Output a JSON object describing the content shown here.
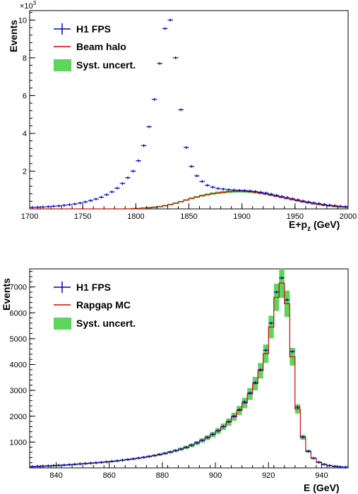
{
  "chart_data": [
    {
      "type": "line",
      "xlabel": "E+p",
      "xlabel_sub": "z",
      "xlabel_unit": " (GeV)",
      "ylabel": "Events",
      "y_multiplier": "×10",
      "y_multiplier_exp": "3",
      "xlim": [
        1700,
        2000
      ],
      "ylim": [
        0,
        10.5
      ],
      "xticks": [
        "1700",
        "1750",
        "1800",
        "1850",
        "1900",
        "1950",
        "2000"
      ],
      "yticks": [
        "2",
        "4",
        "6",
        "8",
        "10"
      ],
      "legend": [
        "H1 FPS",
        "Beam halo",
        "Syst. uncert."
      ],
      "legend_placement": "top-left",
      "colors": {
        "data": "#0000cc",
        "model": "#dd0000",
        "band": "#5dd65d"
      },
      "bin_width": 5,
      "series": [
        {
          "name": "H1 FPS",
          "x": [
            1702.5,
            1707.5,
            1712.5,
            1717.5,
            1722.5,
            1727.5,
            1732.5,
            1737.5,
            1742.5,
            1747.5,
            1752.5,
            1757.5,
            1762.5,
            1767.5,
            1772.5,
            1777.5,
            1782.5,
            1787.5,
            1792.5,
            1797.5,
            1802.5,
            1807.5,
            1812.5,
            1817.5,
            1822.5,
            1827.5,
            1832.5,
            1837.5,
            1842.5,
            1847.5,
            1852.5,
            1857.5,
            1862.5,
            1867.5,
            1872.5,
            1877.5,
            1882.5,
            1887.5,
            1892.5,
            1897.5,
            1902.5,
            1907.5,
            1912.5,
            1917.5,
            1922.5,
            1927.5,
            1932.5,
            1937.5,
            1942.5,
            1947.5,
            1952.5,
            1957.5,
            1962.5,
            1967.5,
            1972.5,
            1977.5,
            1982.5,
            1987.5,
            1992.5,
            1997.5
          ],
          "values": [
            0.08,
            0.09,
            0.1,
            0.12,
            0.14,
            0.16,
            0.19,
            0.22,
            0.26,
            0.31,
            0.37,
            0.44,
            0.52,
            0.62,
            0.75,
            0.9,
            1.1,
            1.35,
            1.65,
            2.0,
            2.55,
            3.35,
            4.35,
            5.8,
            7.7,
            9.55,
            10.0,
            8.0,
            5.25,
            3.25,
            2.25,
            1.75,
            1.45,
            1.25,
            1.15,
            1.08,
            1.05,
            1.02,
            1.0,
            0.98,
            0.97,
            0.95,
            0.92,
            0.88,
            0.84,
            0.78,
            0.72,
            0.66,
            0.6,
            0.54,
            0.48,
            0.42,
            0.37,
            0.32,
            0.28,
            0.24,
            0.2,
            0.17,
            0.14,
            0.12
          ]
        },
        {
          "name": "Beam halo",
          "x": [
            1702.5,
            1707.5,
            1712.5,
            1717.5,
            1722.5,
            1727.5,
            1732.5,
            1737.5,
            1742.5,
            1747.5,
            1752.5,
            1757.5,
            1762.5,
            1767.5,
            1772.5,
            1777.5,
            1782.5,
            1787.5,
            1792.5,
            1797.5,
            1802.5,
            1807.5,
            1812.5,
            1817.5,
            1822.5,
            1827.5,
            1832.5,
            1837.5,
            1842.5,
            1847.5,
            1852.5,
            1857.5,
            1862.5,
            1867.5,
            1872.5,
            1877.5,
            1882.5,
            1887.5,
            1892.5,
            1897.5,
            1902.5,
            1907.5,
            1912.5,
            1917.5,
            1922.5,
            1927.5,
            1932.5,
            1937.5,
            1942.5,
            1947.5,
            1952.5,
            1957.5,
            1962.5,
            1967.5,
            1972.5,
            1977.5,
            1982.5,
            1987.5,
            1992.5,
            1997.5
          ],
          "values": [
            0,
            0,
            0,
            0,
            0,
            0,
            0,
            0,
            0,
            0,
            0,
            0,
            0,
            0,
            0,
            0,
            0,
            0,
            0,
            0.01,
            0.02,
            0.04,
            0.06,
            0.09,
            0.12,
            0.17,
            0.23,
            0.3,
            0.38,
            0.47,
            0.56,
            0.63,
            0.7,
            0.76,
            0.81,
            0.85,
            0.88,
            0.91,
            0.93,
            0.94,
            0.93,
            0.91,
            0.88,
            0.84,
            0.79,
            0.73,
            0.67,
            0.61,
            0.55,
            0.49,
            0.43,
            0.37,
            0.32,
            0.27,
            0.23,
            0.19,
            0.16,
            0.13,
            0.11,
            0.09
          ]
        }
      ]
    },
    {
      "type": "line",
      "xlabel": "E (GeV)",
      "ylabel": "Events",
      "xlim": [
        830,
        950
      ],
      "ylim": [
        0,
        7700
      ],
      "xticks": [
        "840",
        "860",
        "880",
        "900",
        "920",
        "940"
      ],
      "yticks": [
        "1000",
        "2000",
        "3000",
        "4000",
        "5000",
        "6000",
        "7000"
      ],
      "legend": [
        "H1 FPS",
        "Rapgap MC",
        "Syst. uncert."
      ],
      "legend_placement": "top-left",
      "colors": {
        "data": "#0000cc",
        "model": "#dd0000",
        "band": "#5dd65d"
      },
      "bin_width": 2,
      "series": [
        {
          "name": "H1 FPS",
          "x": [
            831,
            833,
            835,
            837,
            839,
            841,
            843,
            845,
            847,
            849,
            851,
            853,
            855,
            857,
            859,
            861,
            863,
            865,
            867,
            869,
            871,
            873,
            875,
            877,
            879,
            881,
            883,
            885,
            887,
            889,
            891,
            893,
            895,
            897,
            899,
            901,
            903,
            905,
            907,
            909,
            911,
            913,
            915,
            917,
            919,
            921,
            923,
            925,
            927,
            929,
            931,
            933,
            935,
            937,
            939,
            941,
            943,
            945,
            947,
            949
          ],
          "values": [
            50,
            60,
            70,
            80,
            90,
            100,
            110,
            125,
            140,
            155,
            170,
            185,
            200,
            215,
            235,
            255,
            275,
            300,
            325,
            350,
            380,
            410,
            445,
            480,
            520,
            565,
            615,
            670,
            730,
            800,
            880,
            970,
            1070,
            1180,
            1300,
            1440,
            1600,
            1790,
            2000,
            2250,
            2550,
            2900,
            3300,
            3800,
            4550,
            5600,
            6800,
            7350,
            6500,
            4500,
            2350,
            1200,
            650,
            380,
            220,
            140,
            90,
            60,
            40,
            30
          ]
        },
        {
          "name": "Rapgap MC",
          "x": [
            831,
            833,
            835,
            837,
            839,
            841,
            843,
            845,
            847,
            849,
            851,
            853,
            855,
            857,
            859,
            861,
            863,
            865,
            867,
            869,
            871,
            873,
            875,
            877,
            879,
            881,
            883,
            885,
            887,
            889,
            891,
            893,
            895,
            897,
            899,
            901,
            903,
            905,
            907,
            909,
            911,
            913,
            915,
            917,
            919,
            921,
            923,
            925,
            927,
            929,
            931,
            933,
            935,
            937,
            939,
            941,
            943,
            945,
            947,
            949
          ],
          "values": [
            45,
            55,
            65,
            75,
            85,
            95,
            105,
            120,
            135,
            150,
            165,
            180,
            195,
            210,
            230,
            250,
            270,
            295,
            320,
            345,
            375,
            405,
            440,
            475,
            515,
            560,
            610,
            665,
            725,
            790,
            870,
            960,
            1060,
            1170,
            1290,
            1430,
            1590,
            1770,
            1980,
            2220,
            2510,
            2860,
            3260,
            3760,
            4420,
            5450,
            6600,
            7150,
            6350,
            4300,
            2280,
            1180,
            640,
            370,
            215,
            135,
            88,
            58,
            38,
            28
          ]
        }
      ]
    }
  ]
}
